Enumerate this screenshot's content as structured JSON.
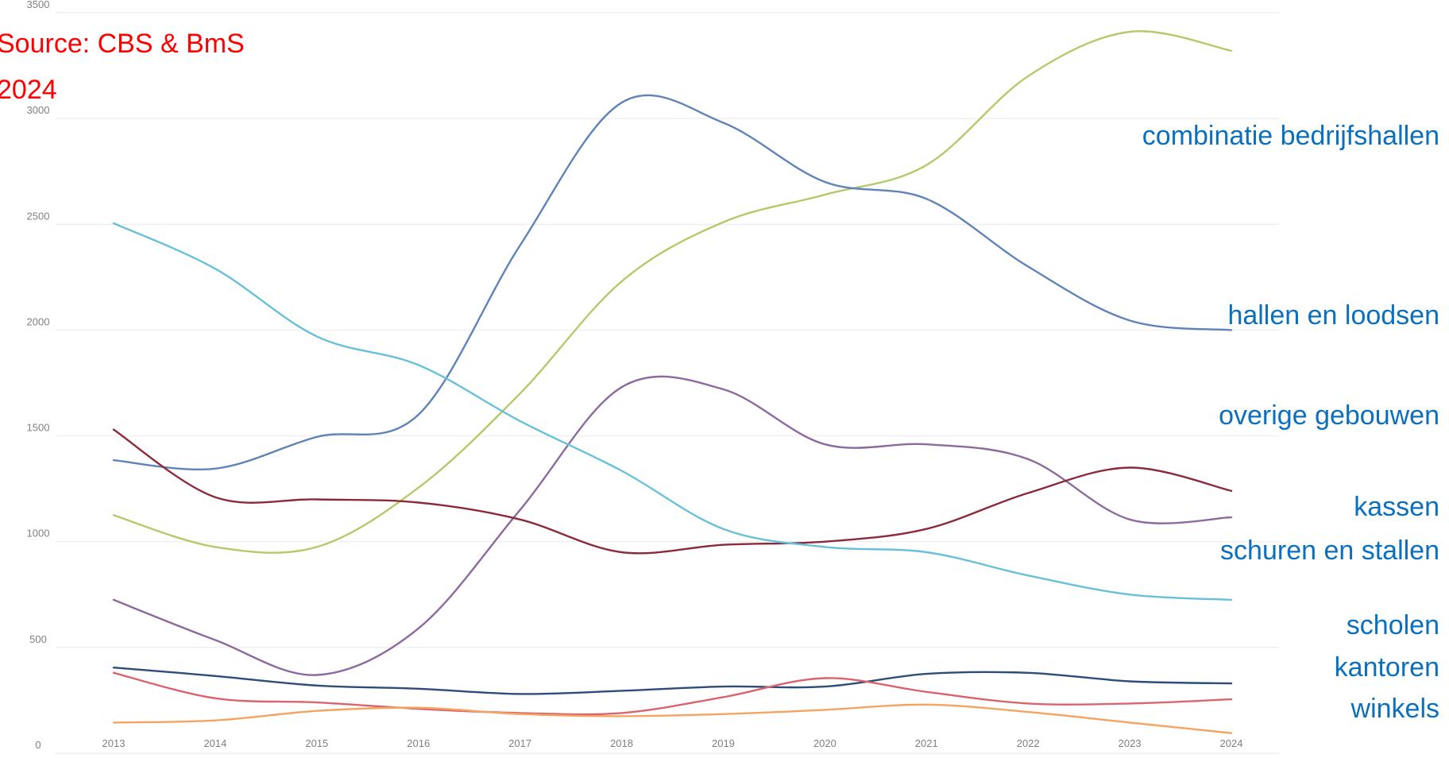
{
  "source_text": "Source: CBS & BmS",
  "year_text": "2024",
  "colors": {
    "series_label": "#0b6fbf",
    "source": "#ff0000",
    "grid": "#efefef",
    "tick": "#7f7f7f"
  },
  "chart_data": {
    "type": "line",
    "title": "",
    "xlabel": "",
    "ylabel": "",
    "ylim": [
      0,
      3500
    ],
    "y_ticks": [
      0,
      500,
      1000,
      1500,
      2000,
      2500,
      3000,
      3500
    ],
    "x": [
      "2013",
      "2014",
      "2015",
      "2016",
      "2017",
      "2018",
      "2019",
      "2020",
      "2021",
      "2022",
      "2023",
      "2024"
    ],
    "grid": true,
    "legend": "direct labels on right",
    "series": [
      {
        "key": "combinatie",
        "color": "#b5c96a",
        "values": [
          1125,
          975,
          975,
          1255,
          1700,
          2230,
          2510,
          2640,
          2780,
          3200,
          3410,
          3320
        ]
      },
      {
        "key": "hallen",
        "color": "#5f83b8",
        "values": [
          1385,
          1345,
          1495,
          1600,
          2400,
          3075,
          2980,
          2700,
          2620,
          2300,
          2045,
          2000
        ]
      },
      {
        "key": "overige",
        "color": "#8c6aa0",
        "values": [
          725,
          535,
          370,
          590,
          1150,
          1730,
          1720,
          1460,
          1460,
          1390,
          1105,
          1115
        ]
      },
      {
        "key": "kassen",
        "color": "#8b2a3b",
        "values": [
          1530,
          1210,
          1200,
          1185,
          1105,
          950,
          985,
          1000,
          1060,
          1230,
          1350,
          1240
        ]
      },
      {
        "key": "schuren",
        "color": "#68c0da",
        "values": [
          2505,
          2290,
          1970,
          1835,
          1570,
          1335,
          1060,
          975,
          950,
          840,
          750,
          725
        ]
      },
      {
        "key": "scholen",
        "color": "#2c4d78",
        "values": [
          405,
          365,
          320,
          305,
          280,
          295,
          315,
          315,
          375,
          380,
          340,
          330
        ]
      },
      {
        "key": "kantoren",
        "color": "#d9646e",
        "values": [
          380,
          260,
          240,
          210,
          190,
          190,
          265,
          355,
          290,
          235,
          235,
          255
        ]
      },
      {
        "key": "winkels",
        "color": "#f4a460",
        "values": [
          145,
          155,
          200,
          215,
          185,
          175,
          185,
          205,
          230,
          195,
          145,
          95
        ]
      }
    ],
    "series_labels": [
      "combinatie bedrijfshallen",
      "hallen en loodsen",
      "overige gebouwen",
      "kassen",
      "schuren en stallen",
      "scholen",
      "kantoren",
      "winkels"
    ]
  }
}
